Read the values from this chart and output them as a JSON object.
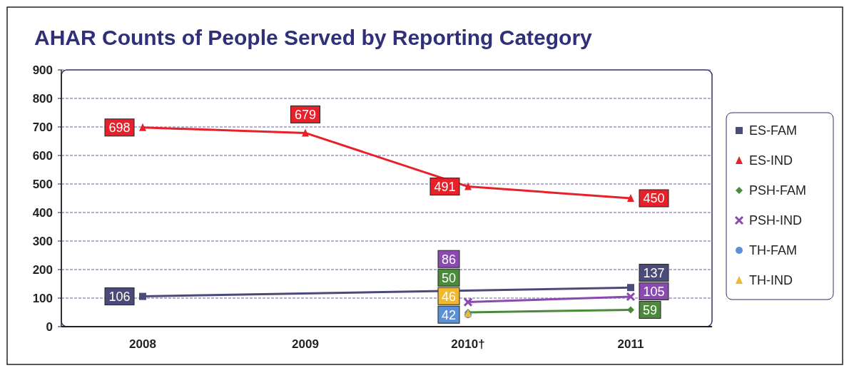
{
  "chart_data": {
    "type": "line",
    "title": "AHAR Counts of People Served by Reporting Category",
    "categories": [
      "2008",
      "2009",
      "2010†",
      "2011"
    ],
    "series": [
      {
        "name": "ES-FAM",
        "color": "#4b4b7a",
        "marker": "square",
        "values": [
          106,
          null,
          null,
          137
        ]
      },
      {
        "name": "ES-IND",
        "color": "#e8202a",
        "marker": "triangle",
        "values": [
          698,
          679,
          491,
          450
        ]
      },
      {
        "name": "PSH-FAM",
        "color": "#4a8a3a",
        "marker": "diamond",
        "values": [
          null,
          null,
          50,
          59
        ]
      },
      {
        "name": "PSH-IND",
        "color": "#8a4ab0",
        "marker": "cross",
        "values": [
          null,
          null,
          86,
          105
        ]
      },
      {
        "name": "TH-FAM",
        "color": "#5b8fd6",
        "marker": "circle",
        "values": [
          null,
          null,
          42,
          null
        ]
      },
      {
        "name": "TH-IND",
        "color": "#f0b830",
        "marker": "triangle",
        "values": [
          null,
          null,
          46,
          null
        ]
      }
    ],
    "ylim": [
      0,
      900
    ],
    "yticks": [
      0,
      100,
      200,
      300,
      400,
      500,
      600,
      700,
      800,
      900
    ],
    "grid": "y",
    "legend": "right",
    "data_labels": true
  }
}
